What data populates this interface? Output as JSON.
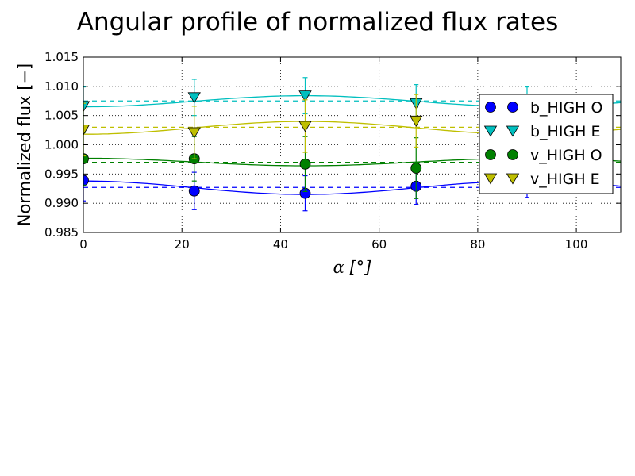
{
  "chart_data": {
    "type": "scatter",
    "title": "Angular profile of normalized flux rates",
    "xlabel": "α [°]",
    "ylabel": "Normalized flux  [−]",
    "xlim": [
      0,
      109
    ],
    "ylim": [
      0.985,
      1.015
    ],
    "xticks": [
      0,
      20,
      40,
      60,
      80,
      100
    ],
    "yticks": [
      "0.985",
      "0.990",
      "0.995",
      "1.000",
      "1.005",
      "1.010",
      "1.015"
    ],
    "grid": true,
    "legend_position": "right",
    "series": [
      {
        "name": "b_HIGH O",
        "marker": "circle",
        "color": "#0000ff",
        "x": [
          0,
          22.5,
          45,
          67.5,
          90
        ],
        "y": [
          0.9939,
          0.9921,
          0.9917,
          0.9929,
          0.9942
        ],
        "err": [
          0.0035,
          0.0032,
          0.003,
          0.0031,
          0.0032
        ],
        "mean": 0.9927,
        "fit": {
          "offset": 0.99265,
          "amplitude": 0.00115
        }
      },
      {
        "name": "b_HIGH E",
        "marker": "triangle-down",
        "color": "#00bfbf",
        "x": [
          0,
          22.5,
          45,
          67.5,
          90
        ],
        "y": [
          1.0066,
          1.0081,
          1.0084,
          1.0071,
          1.0067
        ],
        "err": [
          0.0033,
          0.0031,
          0.0031,
          0.0032,
          0.0032
        ],
        "mean": 1.0075,
        "fit": {
          "offset": 1.00745,
          "amplitude": -0.00095
        }
      },
      {
        "name": "v_HIGH O",
        "marker": "circle",
        "color": "#008000",
        "x": [
          0,
          22.5,
          45,
          67.5,
          90
        ],
        "y": [
          0.9976,
          0.9976,
          0.9967,
          0.996,
          0.9978
        ],
        "err": [
          0.0045,
          0.0038,
          0.0047,
          0.0052,
          0.0044
        ],
        "mean": 0.997,
        "fit": {
          "offset": 0.99705,
          "amplitude": 0.00065
        }
      },
      {
        "name": "v_HIGH E",
        "marker": "triangle-down",
        "color": "#bfbf00",
        "x": [
          0,
          22.5,
          45,
          67.5,
          90
        ],
        "y": [
          1.0026,
          1.0021,
          1.0032,
          1.0041,
          1.0024
        ],
        "err": [
          0.0045,
          0.0045,
          0.0045,
          0.0045,
          0.0045
        ],
        "mean": 1.003,
        "fit": {
          "offset": 1.0029,
          "amplitude": -0.0011
        }
      }
    ]
  }
}
